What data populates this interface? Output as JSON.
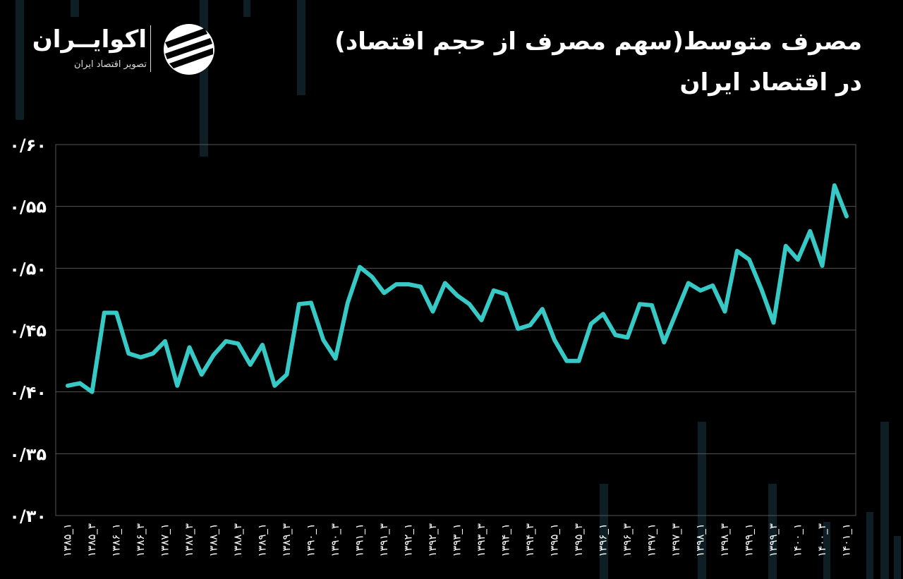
{
  "title": "مصرف متوسط(سهم مصرف از حجم اقتصاد) در اقتصاد ایران",
  "brand": {
    "name": "اکوایــران",
    "tagline": "تصویر اقتصاد ایران",
    "logo_icon": "ekoiran-logo-icon"
  },
  "colors": {
    "line": "#36c9c6",
    "background": "#000000",
    "grid": "#555555"
  },
  "chart_data": {
    "type": "line",
    "title": "مصرف متوسط(سهم مصرف از حجم اقتصاد) در اقتصاد ایران",
    "xlabel": "",
    "ylabel": "",
    "ylim": [
      0.3,
      0.6
    ],
    "yticks": [
      0.3,
      0.35,
      0.4,
      0.45,
      0.5,
      0.55,
      0.6
    ],
    "ytick_labels": [
      "۰/۳۰",
      "۰/۳۵",
      "۰/۴۰",
      "۰/۴۵",
      "۰/۵۰",
      "۰/۵۵",
      "۰/۶۰"
    ],
    "grid": true,
    "legend": "none",
    "x_tick_labels": [
      "۱۳۸۵_۱",
      "۱۳۸۵_۳",
      "۱۳۸۶_۱",
      "۱۳۸۶_۳",
      "۱۳۸۷_۱",
      "۱۳۸۷_۳",
      "۱۳۸۸_۱",
      "۱۳۸۸_۳",
      "۱۳۸۹_۱",
      "۱۳۸۹_۳",
      "۱۳۹۰_۱",
      "۱۳۹۰_۳",
      "۱۳۹۱_۱",
      "۱۳۹۱_۳",
      "۱۳۹۲_۱",
      "۱۳۹۲_۳",
      "۱۳۹۳_۱",
      "۱۳۹۳_۳",
      "۱۳۹۴_۱",
      "۱۳۹۴_۳",
      "۱۳۹۵_۱",
      "۱۳۹۵_۳",
      "۱۳۹۶_۱",
      "۱۳۹۶_۳",
      "۱۳۹۷_۱",
      "۱۳۹۷_۳",
      "۱۳۹۸_۱",
      "۱۳۹۸_۳",
      "۱۳۹۹_۱",
      "۱۳۹۹_۳",
      "۱۴۰۰_۱",
      "۱۴۰۰_۳",
      "۱۴۰۱_۱"
    ],
    "series": [
      {
        "values": [
          0.405,
          0.407,
          0.4,
          0.464,
          0.464,
          0.431,
          0.428,
          0.431,
          0.441,
          0.405,
          0.436,
          0.414,
          0.43,
          0.441,
          0.439,
          0.422,
          0.438,
          0.405,
          0.414,
          0.471,
          0.472,
          0.442,
          0.427,
          0.472,
          0.501,
          0.493,
          0.48,
          0.487,
          0.487,
          0.485,
          0.465,
          0.488,
          0.478,
          0.471,
          0.458,
          0.482,
          0.479,
          0.451,
          0.454,
          0.467,
          0.442,
          0.425,
          0.425,
          0.455,
          0.463,
          0.446,
          0.444,
          0.471,
          0.47,
          0.44,
          0.464,
          0.488,
          0.482,
          0.486,
          0.465,
          0.514,
          0.507,
          0.483,
          0.456,
          0.518,
          0.507,
          0.53,
          0.502,
          0.567,
          0.542
        ]
      }
    ]
  }
}
